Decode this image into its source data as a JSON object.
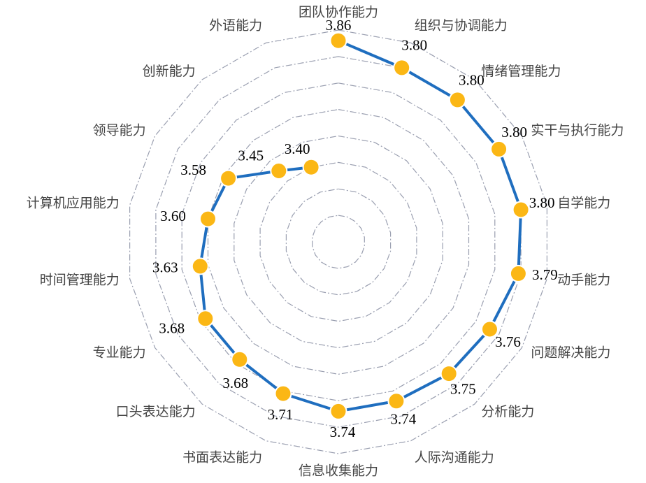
{
  "chart_data": {
    "type": "radar",
    "title": "",
    "categories": [
      "团队协作能力",
      "组织与协调能力",
      "情绪管理能力",
      "实干与执行能力",
      "自学能力",
      "动手能力",
      "问题解决能力",
      "分析能力",
      "人际沟通能力",
      "信息收集能力",
      "书面表达能力",
      "口头表达能力",
      "专业能力",
      "时间管理能力",
      "计算机应用能力",
      "领导能力",
      "创新能力",
      "外语能力"
    ],
    "series": [
      {
        "values": [
          3.86,
          3.8,
          3.8,
          3.8,
          3.8,
          3.79,
          3.76,
          3.75,
          3.74,
          3.74,
          3.71,
          3.68,
          3.68,
          3.63,
          3.6,
          3.58,
          3.45,
          3.4
        ]
      }
    ],
    "value_labels": [
      "3.86",
      "3.80",
      "3.80",
      "3.80",
      "3.80",
      "3.79",
      "3.76",
      "3.75",
      "3.74",
      "3.74",
      "3.71",
      "3.68",
      "3.68",
      "3.63",
      "3.60",
      "3.58",
      "3.45",
      "3.40"
    ],
    "rlim": [
      3.1,
      3.9
    ],
    "ring_count": 8,
    "line_color": "#1f6ebf",
    "marker_color": "#fbb715",
    "grid_color": "#9a9fb0",
    "grid": true,
    "legend": false
  }
}
